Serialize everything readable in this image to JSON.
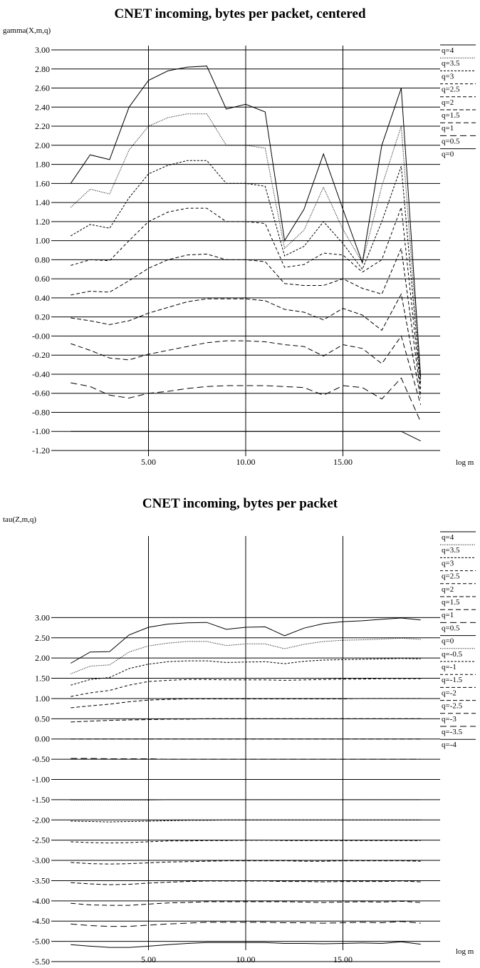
{
  "chart_data": [
    {
      "type": "line",
      "title": "CNET incoming, bytes per packet, centered",
      "ylabel": "gamma(X,m,q)",
      "xlabel": "log m",
      "xlim": [
        0,
        20
      ],
      "ylim": [
        -1.2,
        3.0
      ],
      "yticks": [
        "3.00",
        "2.80",
        "2.60",
        "2.40",
        "2.20",
        "2.00",
        "1.80",
        "1.60",
        "1.40",
        "1.20",
        "1.00",
        "0.80",
        "0.60",
        "0.40",
        "0.20",
        "-0.00",
        "-0.20",
        "-0.40",
        "-0.60",
        "-0.80",
        "-1.00",
        "-1.20"
      ],
      "xticks": [
        "5.00",
        "10.00",
        "15.00"
      ],
      "grid": true,
      "legend_position": "right",
      "x": [
        1,
        2,
        3,
        4,
        5,
        6,
        7,
        8,
        9,
        10,
        11,
        12,
        13,
        14,
        15,
        16,
        17,
        18,
        19
      ],
      "series": [
        {
          "name": "q=4",
          "dash": "",
          "values": [
            1.6,
            1.9,
            1.85,
            2.4,
            2.68,
            2.78,
            2.82,
            2.83,
            2.38,
            2.43,
            2.35,
            1.0,
            1.33,
            1.91,
            1.33,
            0.77,
            2.0,
            2.6,
            -0.43
          ]
        },
        {
          "name": "q=3.5",
          "dash": "1,1.5",
          "values": [
            1.35,
            1.54,
            1.49,
            1.95,
            2.2,
            2.29,
            2.33,
            2.33,
            2.0,
            2.0,
            1.97,
            0.92,
            1.11,
            1.56,
            1.12,
            0.77,
            1.57,
            2.2,
            -0.47
          ]
        },
        {
          "name": "q=3",
          "dash": "3,2",
          "values": [
            1.05,
            1.17,
            1.13,
            1.45,
            1.7,
            1.79,
            1.84,
            1.84,
            1.6,
            1.6,
            1.57,
            0.84,
            0.94,
            1.2,
            0.97,
            0.7,
            1.2,
            1.78,
            -0.5
          ]
        },
        {
          "name": "q=2.5",
          "dash": "4,3",
          "values": [
            0.74,
            0.8,
            0.79,
            1.0,
            1.2,
            1.3,
            1.34,
            1.34,
            1.2,
            1.2,
            1.18,
            0.72,
            0.75,
            0.87,
            0.85,
            0.67,
            0.8,
            1.35,
            -0.55
          ]
        },
        {
          "name": "q=2",
          "dash": "5,3",
          "values": [
            0.43,
            0.47,
            0.46,
            0.58,
            0.71,
            0.8,
            0.85,
            0.86,
            0.8,
            0.8,
            0.78,
            0.55,
            0.53,
            0.53,
            0.6,
            0.5,
            0.44,
            0.92,
            -0.6
          ]
        },
        {
          "name": "q=1.5",
          "dash": "6,3",
          "values": [
            0.19,
            0.16,
            0.12,
            0.16,
            0.24,
            0.3,
            0.36,
            0.39,
            0.39,
            0.39,
            0.37,
            0.28,
            0.25,
            0.17,
            0.29,
            0.22,
            0.06,
            0.44,
            -0.65
          ]
        },
        {
          "name": "q=1",
          "dash": "7,4",
          "values": [
            -0.08,
            -0.15,
            -0.23,
            -0.25,
            -0.19,
            -0.15,
            -0.11,
            -0.07,
            -0.05,
            -0.05,
            -0.06,
            -0.09,
            -0.11,
            -0.21,
            -0.09,
            -0.13,
            -0.29,
            0.0,
            -0.72
          ]
        },
        {
          "name": "q=0.5",
          "dash": "9,5",
          "values": [
            -0.49,
            -0.53,
            -0.62,
            -0.65,
            -0.6,
            -0.58,
            -0.55,
            -0.53,
            -0.52,
            -0.52,
            -0.52,
            -0.53,
            -0.54,
            -0.62,
            -0.52,
            -0.54,
            -0.66,
            -0.44,
            -0.9
          ]
        },
        {
          "name": "q=0",
          "dash": "",
          "values": [
            -1.0,
            -1.0,
            -1.0,
            -1.0,
            -1.0,
            -1.0,
            -1.0,
            -1.0,
            -1.0,
            -1.0,
            -1.0,
            -1.0,
            -1.0,
            -1.0,
            -1.0,
            -1.0,
            -1.0,
            -1.0,
            -1.1
          ]
        }
      ]
    },
    {
      "type": "line",
      "title": "CNET incoming, bytes per packet",
      "ylabel": "tau(Z,m,q)",
      "xlabel": "log m",
      "xlim": [
        0,
        20
      ],
      "ylim": [
        -5.5,
        3.5
      ],
      "yticks": [
        "3.00",
        "2.50",
        "2.00",
        "1.50",
        "1.00",
        "0.50",
        "0.00",
        "-0.50",
        "-1.00",
        "-1.50",
        "-2.00",
        "-2.50",
        "-3.00",
        "-3.50",
        "-4.00",
        "-4.50",
        "-5.00",
        "-5.50"
      ],
      "xticks": [
        "5.00",
        "10.00",
        "15.00"
      ],
      "grid": true,
      "legend_position": "right",
      "x": [
        1,
        2,
        3,
        4,
        5,
        6,
        7,
        8,
        9,
        10,
        11,
        12,
        13,
        14,
        15,
        16,
        17,
        18,
        19
      ],
      "series": [
        {
          "name": "q=4",
          "dash": "",
          "values": [
            1.87,
            2.15,
            2.16,
            2.57,
            2.76,
            2.84,
            2.87,
            2.88,
            2.71,
            2.76,
            2.77,
            2.55,
            2.74,
            2.85,
            2.9,
            2.92,
            2.96,
            2.99,
            2.94
          ]
        },
        {
          "name": "q=3.5",
          "dash": "1,1.5",
          "values": [
            1.61,
            1.8,
            1.83,
            2.15,
            2.3,
            2.37,
            2.41,
            2.41,
            2.31,
            2.35,
            2.35,
            2.23,
            2.34,
            2.41,
            2.44,
            2.45,
            2.47,
            2.49,
            2.46
          ]
        },
        {
          "name": "q=3",
          "dash": "3,2",
          "values": [
            1.33,
            1.47,
            1.52,
            1.74,
            1.85,
            1.91,
            1.93,
            1.93,
            1.89,
            1.9,
            1.91,
            1.86,
            1.92,
            1.95,
            1.96,
            1.97,
            1.98,
            1.99,
            1.98
          ]
        },
        {
          "name": "q=2.5",
          "dash": "4,3",
          "values": [
            1.05,
            1.14,
            1.2,
            1.33,
            1.42,
            1.45,
            1.47,
            1.47,
            1.46,
            1.46,
            1.46,
            1.45,
            1.46,
            1.47,
            1.48,
            1.48,
            1.49,
            1.49,
            1.49
          ]
        },
        {
          "name": "q=2",
          "dash": "5,3",
          "values": [
            0.77,
            0.82,
            0.86,
            0.92,
            0.96,
            0.98,
            0.99,
            0.99,
            0.99,
            0.99,
            0.99,
            0.99,
            0.99,
            0.99,
            0.99,
            1.0,
            1.0,
            1.0,
            1.0
          ]
        },
        {
          "name": "q=1.5",
          "dash": "6,3",
          "values": [
            0.42,
            0.44,
            0.46,
            0.47,
            0.48,
            0.49,
            0.49,
            0.5,
            0.5,
            0.5,
            0.5,
            0.5,
            0.5,
            0.5,
            0.5,
            0.5,
            0.5,
            0.5,
            0.5
          ]
        },
        {
          "name": "q=1",
          "dash": "7,4",
          "values": [
            0,
            0,
            0,
            0,
            0,
            0,
            0,
            0,
            0,
            0,
            0,
            0,
            0,
            0,
            0,
            0,
            0,
            0,
            0
          ]
        },
        {
          "name": "q=0.5",
          "dash": "9,5",
          "values": [
            -0.48,
            -0.48,
            -0.49,
            -0.49,
            -0.49,
            -0.5,
            -0.5,
            -0.5,
            -0.5,
            -0.5,
            -0.5,
            -0.5,
            -0.5,
            -0.5,
            -0.5,
            -0.5,
            -0.5,
            -0.5,
            -0.5
          ]
        },
        {
          "name": "q=0",
          "dash": "",
          "values": [
            -1.0,
            -1.0,
            -1.0,
            -1.0,
            -1.0,
            -1.0,
            -1.0,
            -1.0,
            -1.0,
            -1.0,
            -1.0,
            -1.0,
            -1.0,
            -1.0,
            -1.0,
            -1.0,
            -1.0,
            -1.0,
            -1.0
          ]
        },
        {
          "name": "q=-0.5",
          "dash": "1,1.5",
          "values": [
            -1.51,
            -1.51,
            -1.51,
            -1.51,
            -1.51,
            -1.5,
            -1.5,
            -1.5,
            -1.5,
            -1.5,
            -1.5,
            -1.5,
            -1.5,
            -1.5,
            -1.5,
            -1.5,
            -1.5,
            -1.5,
            -1.5
          ]
        },
        {
          "name": "q=-1",
          "dash": "3,2",
          "values": [
            -2.03,
            -2.04,
            -2.05,
            -2.04,
            -2.03,
            -2.02,
            -2.01,
            -2.01,
            -2.0,
            -2.0,
            -2.0,
            -2.0,
            -2.0,
            -2.0,
            -2.0,
            -2.0,
            -2.0,
            -2.0,
            -2.0
          ]
        },
        {
          "name": "q=-1.5",
          "dash": "4,3",
          "values": [
            -2.54,
            -2.56,
            -2.57,
            -2.56,
            -2.54,
            -2.52,
            -2.52,
            -2.51,
            -2.51,
            -2.5,
            -2.5,
            -2.51,
            -2.51,
            -2.51,
            -2.51,
            -2.51,
            -2.51,
            -2.51,
            -2.51
          ]
        },
        {
          "name": "q=-2",
          "dash": "5,3",
          "values": [
            -3.05,
            -3.08,
            -3.09,
            -3.08,
            -3.06,
            -3.04,
            -3.03,
            -3.02,
            -3.01,
            -3.01,
            -3.01,
            -3.01,
            -3.02,
            -3.02,
            -3.01,
            -3.01,
            -3.01,
            -3.01,
            -3.02
          ]
        },
        {
          "name": "q=-2.5",
          "dash": "6,3",
          "values": [
            -3.55,
            -3.58,
            -3.6,
            -3.59,
            -3.56,
            -3.54,
            -3.52,
            -3.51,
            -3.51,
            -3.51,
            -3.51,
            -3.52,
            -3.52,
            -3.53,
            -3.52,
            -3.52,
            -3.52,
            -3.51,
            -3.53
          ]
        },
        {
          "name": "q=-3",
          "dash": "7,4",
          "values": [
            -4.06,
            -4.1,
            -4.11,
            -4.11,
            -4.08,
            -4.05,
            -4.04,
            -4.02,
            -4.02,
            -4.02,
            -4.02,
            -4.02,
            -4.03,
            -4.04,
            -4.03,
            -4.02,
            -4.03,
            -4.01,
            -4.04
          ]
        },
        {
          "name": "q=-3.5",
          "dash": "9,5",
          "values": [
            -4.57,
            -4.61,
            -4.63,
            -4.63,
            -4.6,
            -4.57,
            -4.55,
            -4.53,
            -4.53,
            -4.53,
            -4.53,
            -4.54,
            -4.54,
            -4.55,
            -4.54,
            -4.53,
            -4.54,
            -4.51,
            -4.55
          ]
        },
        {
          "name": "q=-4",
          "dash": "",
          "values": [
            -5.08,
            -5.12,
            -5.15,
            -5.15,
            -5.12,
            -5.08,
            -5.05,
            -5.03,
            -5.03,
            -5.03,
            -5.03,
            -5.05,
            -5.05,
            -5.06,
            -5.05,
            -5.04,
            -5.05,
            -5.01,
            -5.07
          ]
        }
      ]
    }
  ]
}
